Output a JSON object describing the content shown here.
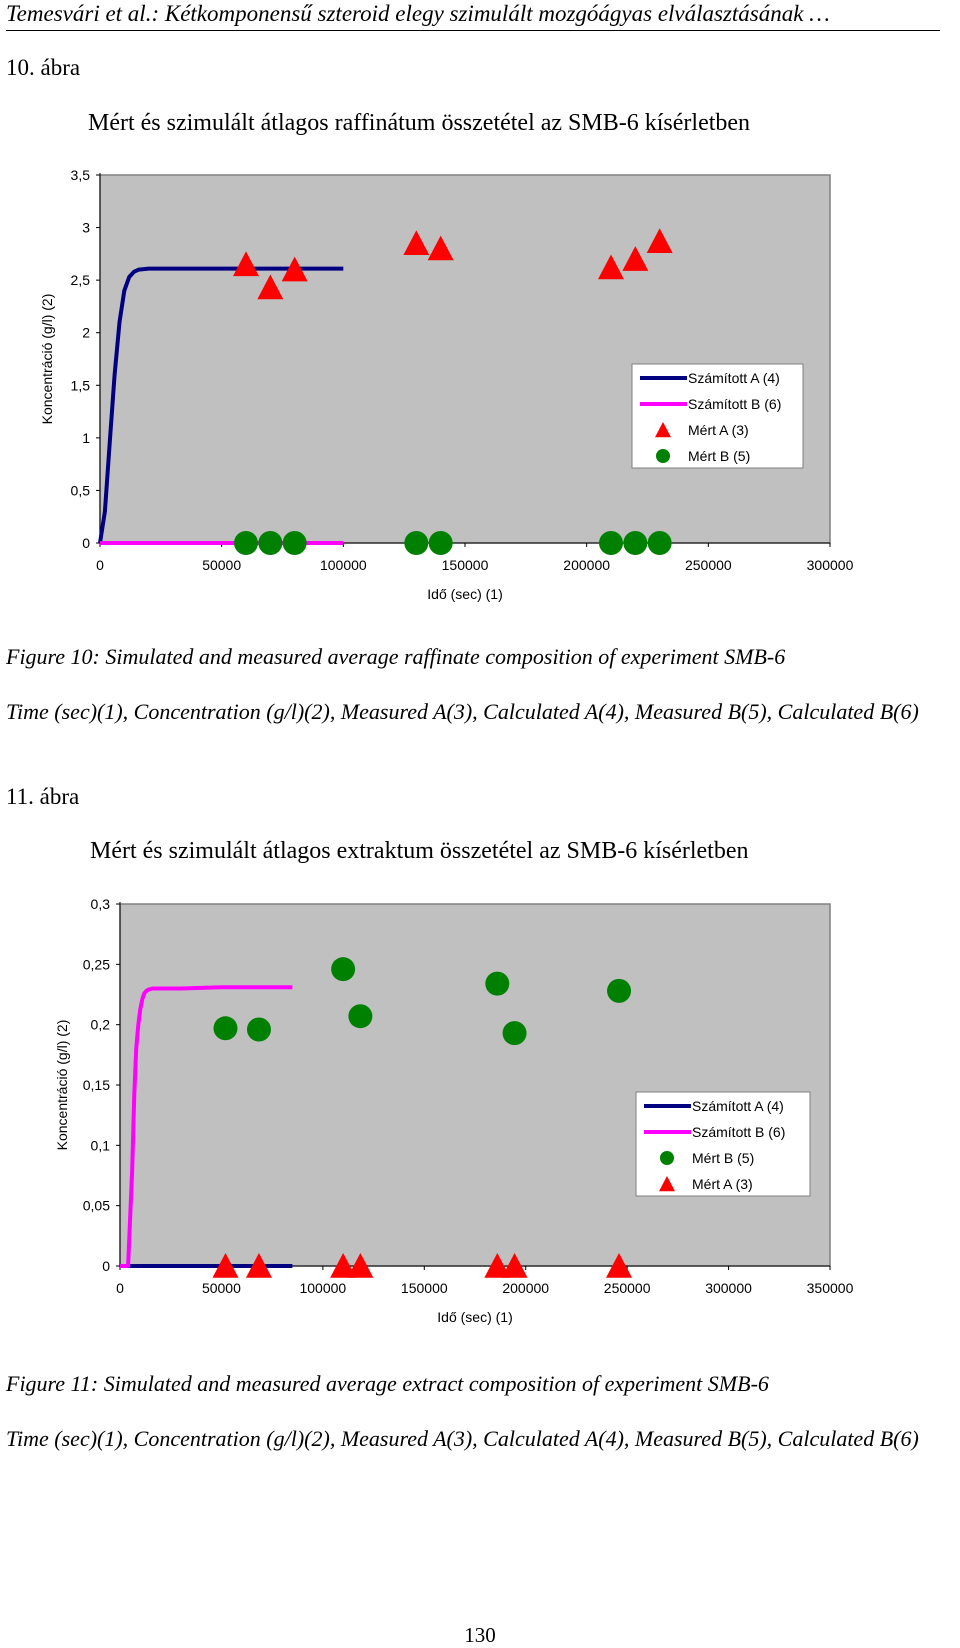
{
  "header": {
    "running_title": "Temesvári et al.: Kétkomponensű szteroid elegy szimulált mozgóágyas elválasztásának …"
  },
  "figure10": {
    "label": "10. ábra",
    "caption": "Figure 10: Simulated and measured average raffinate composition of experiment SMB-6",
    "legend_caption": "Time (sec)(1), Concentration (g/l)(2), Measured A(3), Calculated A(4), Measured B(5), Calculated B(6)"
  },
  "figure11": {
    "label": "11. ábra",
    "caption": "Figure 11: Simulated and measured average extract composition of experiment SMB-6",
    "legend_caption": "Time (sec)(1), Concentration (g/l)(2), Measured A(3), Calculated A(4), Measured B(5), Calculated B(6)"
  },
  "page_number": "130",
  "colors": {
    "plot_bg": "#c0c0c0",
    "calc_a": "#000080",
    "calc_b": "#ff00ff",
    "meas_a": "#ff0000",
    "meas_b": "#008000"
  },
  "chart_data": [
    {
      "type": "scatter",
      "title": "Mért és szimulált átlagos raffinátum összetétel az SMB-6 kísérletben",
      "xlabel": "Idő (sec) (1)",
      "ylabel": "Koncentráció (g/l) (2)",
      "xlim": [
        0,
        300000
      ],
      "ylim": [
        0,
        3.5
      ],
      "x_ticks": [
        "0",
        "50000",
        "100000",
        "150000",
        "200000",
        "250000",
        "300000"
      ],
      "y_ticks": [
        "0",
        "0,5",
        "1",
        "1,5",
        "2",
        "2,5",
        "3",
        "3,5"
      ],
      "grid": false,
      "legend_position": "right",
      "series": [
        {
          "name": "Számított A (4)",
          "kind": "line",
          "color": "#000080",
          "x": [
            0,
            2000,
            4000,
            6000,
            8000,
            10000,
            12000,
            14000,
            16000,
            18000,
            20000,
            25000,
            30000,
            50000,
            80000,
            100000
          ],
          "y": [
            0,
            0.3,
            0.95,
            1.6,
            2.1,
            2.4,
            2.53,
            2.58,
            2.6,
            2.605,
            2.61,
            2.61,
            2.61,
            2.61,
            2.61,
            2.61
          ]
        },
        {
          "name": "Számított B (6)",
          "kind": "line",
          "color": "#ff00ff",
          "x": [
            0,
            100000
          ],
          "y": [
            0,
            0
          ]
        },
        {
          "name": "Mért A (3)",
          "kind": "marker",
          "marker": "triangle",
          "color": "#ff0000",
          "x": [
            60000,
            70000,
            80000,
            130000,
            140000,
            210000,
            220000,
            230000
          ],
          "y": [
            2.65,
            2.43,
            2.6,
            2.85,
            2.8,
            2.62,
            2.7,
            2.87
          ]
        },
        {
          "name": "Mért B (5)",
          "kind": "marker",
          "marker": "circle",
          "color": "#008000",
          "x": [
            60000,
            70000,
            80000,
            130000,
            140000,
            210000,
            220000,
            230000
          ],
          "y": [
            0,
            0,
            0,
            0,
            0,
            0,
            0,
            0
          ]
        }
      ],
      "legend": [
        "Számított A (4)",
        "Számított B (6)",
        "Mért A (3)",
        "Mért B (5)"
      ]
    },
    {
      "type": "scatter",
      "title": "Mért és szimulált átlagos extraktum összetétel az SMB-6 kísérletben",
      "xlabel": "Idő (sec) (1)",
      "ylabel": "Koncentráció (g/l) (2)",
      "xlim": [
        0,
        350000
      ],
      "ylim": [
        0,
        0.3
      ],
      "x_ticks": [
        "0",
        "50000",
        "100000",
        "150000",
        "200000",
        "250000",
        "300000",
        "350000"
      ],
      "y_ticks": [
        "0",
        "0,05",
        "0,1",
        "0,15",
        "0,2",
        "0,25",
        "0,3"
      ],
      "grid": false,
      "legend_position": "right",
      "series": [
        {
          "name": "Számított A (4)",
          "kind": "line",
          "color": "#000080",
          "x": [
            0,
            85000
          ],
          "y": [
            0,
            0
          ]
        },
        {
          "name": "Számított B (6)",
          "kind": "line",
          "color": "#ff00ff",
          "x": [
            0,
            4000,
            6000,
            7000,
            8000,
            9000,
            10000,
            11000,
            12000,
            13000,
            14000,
            16000,
            18000,
            22000,
            30000,
            50000,
            85000
          ],
          "y": [
            0,
            0,
            0.08,
            0.14,
            0.18,
            0.2,
            0.213,
            0.221,
            0.226,
            0.228,
            0.229,
            0.23,
            0.23,
            0.23,
            0.23,
            0.231,
            0.231
          ]
        },
        {
          "name": "Mért B (5)",
          "kind": "marker",
          "marker": "circle",
          "color": "#008000",
          "x": [
            52000,
            68500,
            110000,
            118500,
            186000,
            194500,
            246000
          ],
          "y": [
            0.197,
            0.196,
            0.246,
            0.207,
            0.234,
            0.193,
            0.228
          ]
        },
        {
          "name": "Mért A (3)",
          "kind": "marker",
          "marker": "triangle",
          "color": "#ff0000",
          "x": [
            52000,
            68500,
            110000,
            118500,
            186000,
            194500,
            246000
          ],
          "y": [
            0,
            0,
            0,
            0,
            0,
            0,
            0
          ]
        }
      ],
      "legend": [
        "Számított  A (4)",
        "Számított B (6)",
        "Mért B (5)",
        "Mért A (3)"
      ]
    }
  ]
}
